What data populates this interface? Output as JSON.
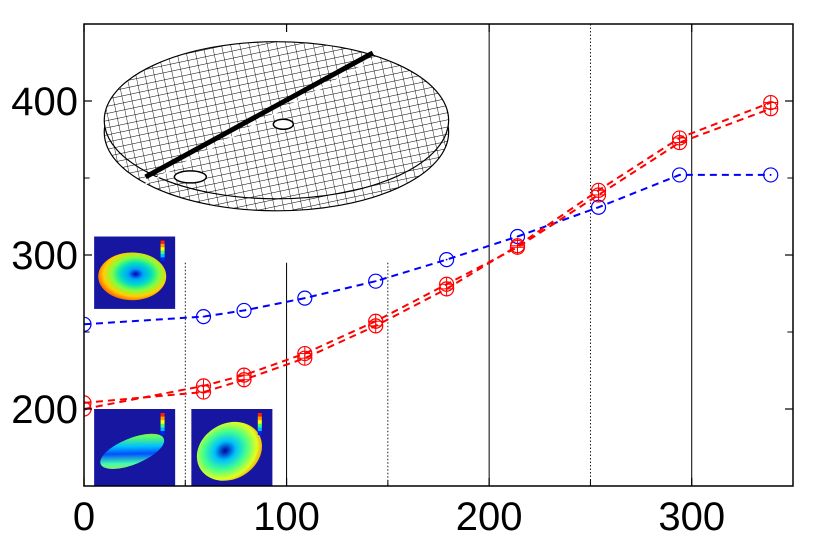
{
  "chart_data": {
    "type": "line",
    "title": "",
    "xlabel": "",
    "ylabel": "",
    "xlim": [
      0,
      350
    ],
    "ylim": [
      150,
      450
    ],
    "x_ticks": [
      0,
      100,
      200,
      300
    ],
    "y_ticks": [
      200,
      300,
      400
    ],
    "x_tick_labels": [
      "0",
      "100",
      "200",
      "300"
    ],
    "y_tick_labels": [
      "200",
      "300",
      "400"
    ],
    "grid": false,
    "legend": "none",
    "vertical_lines": [
      {
        "x": 50,
        "style": "dotted",
        "y_top": 295
      },
      {
        "x": 100,
        "style": "solid",
        "y_top": 295
      },
      {
        "x": 150,
        "style": "dotted",
        "y_top": 295
      },
      {
        "x": 200,
        "style": "solid",
        "y_top": 450
      },
      {
        "x": 250,
        "style": "dotted",
        "y_top": 450
      },
      {
        "x": 300,
        "style": "solid",
        "y_top": 450
      }
    ],
    "series": [
      {
        "color": "#0000ff",
        "marker": "circle-dot",
        "line_style": "dashed",
        "points": [
          [
            0,
            255
          ],
          [
            59,
            260
          ],
          [
            79,
            264
          ],
          [
            109,
            272
          ],
          [
            144,
            283
          ],
          [
            179,
            297
          ],
          [
            214,
            312
          ],
          [
            254,
            331
          ],
          [
            294,
            352
          ],
          [
            339,
            352
          ]
        ]
      },
      {
        "color": "#ff0000",
        "marker": "circle-plus",
        "line_style": "dashed",
        "points": [
          [
            0,
            204
          ],
          [
            59,
            211
          ],
          [
            79,
            219
          ],
          [
            109,
            233
          ],
          [
            144,
            254
          ],
          [
            179,
            278
          ],
          [
            214,
            306
          ],
          [
            254,
            342
          ],
          [
            294,
            376
          ],
          [
            339,
            399
          ]
        ]
      },
      {
        "color": "#ff0000",
        "marker": "circle-plus",
        "line_style": "dashed",
        "points": [
          [
            0,
            200
          ],
          [
            59,
            215
          ],
          [
            79,
            222
          ],
          [
            109,
            236
          ],
          [
            144,
            257
          ],
          [
            179,
            281
          ],
          [
            214,
            305
          ],
          [
            254,
            339
          ],
          [
            294,
            373
          ],
          [
            339,
            395
          ]
        ]
      }
    ],
    "insets": [
      {
        "name": "mesh-disc-inset",
        "kind": "wireframe-mesh",
        "x_range": [
          10,
          180
        ],
        "y_range": [
          330,
          445
        ]
      },
      {
        "name": "contour-inset-top",
        "kind": "contour-map",
        "x_range": [
          5,
          45
        ],
        "y_range": [
          265,
          312
        ]
      },
      {
        "name": "contour-inset-bottom-left",
        "kind": "contour-map",
        "x_range": [
          5,
          45
        ],
        "y_range": [
          150,
          200
        ]
      },
      {
        "name": "contour-inset-bottom-right",
        "kind": "contour-map",
        "x_range": [
          53,
          93
        ],
        "y_range": [
          150,
          200
        ]
      }
    ]
  }
}
